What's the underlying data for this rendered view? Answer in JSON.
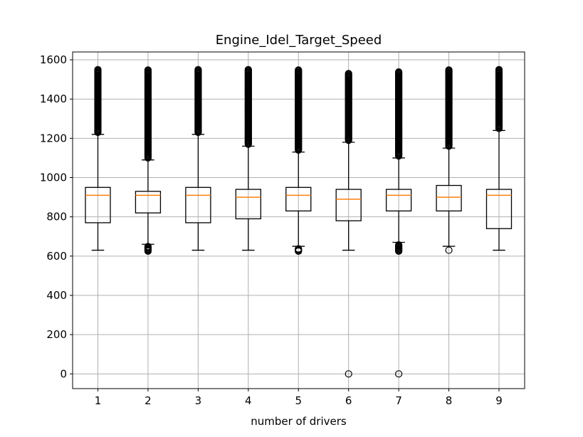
{
  "chart_data": {
    "type": "box",
    "title": "Engine_Idel_Target_Speed",
    "xlabel": "number of drivers",
    "ylabel": "",
    "ylim": [
      -75,
      1640
    ],
    "yticks": [
      0,
      200,
      400,
      600,
      800,
      1000,
      1200,
      1400,
      1600
    ],
    "categories": [
      "1",
      "2",
      "3",
      "4",
      "5",
      "6",
      "7",
      "8",
      "9"
    ],
    "grid": true,
    "colors": {
      "box": "#000000",
      "median": "#ff7f0e",
      "grid": "#b0b0b0"
    },
    "boxes": [
      {
        "category": "1",
        "whisker_low": 630,
        "q1": 770,
        "median": 910,
        "q3": 950,
        "whisker_high": 1220,
        "outliers_high": [
          1230,
          1550
        ],
        "outliers_low": []
      },
      {
        "category": "2",
        "whisker_low": 660,
        "q1": 820,
        "median": 910,
        "q3": 930,
        "whisker_high": 1090,
        "outliers_high": [
          1100,
          1550
        ],
        "outliers_low": [
          625,
          650
        ]
      },
      {
        "category": "3",
        "whisker_low": 630,
        "q1": 770,
        "median": 910,
        "q3": 950,
        "whisker_high": 1220,
        "outliers_high": [
          1230,
          1550
        ],
        "outliers_low": []
      },
      {
        "category": "4",
        "whisker_low": 630,
        "q1": 790,
        "median": 900,
        "q3": 940,
        "whisker_high": 1160,
        "outliers_high": [
          1170,
          1550
        ],
        "outliers_low": []
      },
      {
        "category": "5",
        "whisker_low": 650,
        "q1": 830,
        "median": 910,
        "q3": 950,
        "whisker_high": 1130,
        "outliers_high": [
          1140,
          1550
        ],
        "outliers_low": [
          625,
          640
        ]
      },
      {
        "category": "6",
        "whisker_low": 630,
        "q1": 780,
        "median": 890,
        "q3": 940,
        "whisker_high": 1180,
        "outliers_high": [
          1190,
          1530
        ],
        "outliers_low": [
          0
        ]
      },
      {
        "category": "7",
        "whisker_low": 670,
        "q1": 830,
        "median": 910,
        "q3": 940,
        "whisker_high": 1100,
        "outliers_high": [
          1110,
          1540
        ],
        "outliers_low": [
          0,
          625,
          660
        ]
      },
      {
        "category": "8",
        "whisker_low": 650,
        "q1": 830,
        "median": 900,
        "q3": 960,
        "whisker_high": 1150,
        "outliers_high": [
          1160,
          1550
        ],
        "outliers_low": [
          630
        ]
      },
      {
        "category": "9",
        "whisker_low": 630,
        "q1": 740,
        "median": 910,
        "q3": 940,
        "whisker_high": 1240,
        "outliers_high": [
          1250,
          1550
        ],
        "outliers_low": []
      }
    ]
  }
}
